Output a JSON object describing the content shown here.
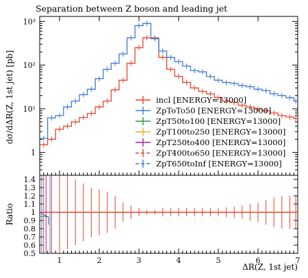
{
  "chart_data": {
    "type": "line",
    "title": "Separation between Z boson and leading jet",
    "xlabel": "ΔR(Z, 1st jet)",
    "ylabel": "dσ/dΔR(Z, 1st jet) [pb]",
    "ratio_ylabel": "Ratio",
    "xlim": [
      0.5,
      7.0
    ],
    "ylim": [
      0.3,
      1300
    ],
    "ylog": true,
    "ratio_ylim": [
      0.5,
      1.45
    ],
    "x_ticks": [
      "1",
      "2",
      "3",
      "4",
      "5",
      "6",
      "7"
    ],
    "y_ticks": [
      "1",
      "10¹",
      "10²",
      "10³"
    ],
    "ratio_ticks": [
      "0.5",
      "0.6",
      "0.7",
      "0.8",
      "0.9",
      "1",
      "1.1",
      "1.2",
      "1.3",
      "1.4"
    ],
    "bin_edges": [
      0.5,
      0.7,
      0.9,
      1.1,
      1.3,
      1.5,
      1.7,
      1.9,
      2.1,
      2.3,
      2.5,
      2.7,
      2.9,
      3.1,
      3.3,
      3.5,
      3.7,
      3.9,
      4.1,
      4.3,
      4.5,
      4.7,
      4.9,
      5.1,
      5.3,
      5.5,
      5.7,
      5.9,
      6.1,
      6.3,
      6.5,
      6.7,
      6.9,
      7.0
    ],
    "legend_position": "bottom-right",
    "series": [
      {
        "name": "incl [ENERGY=13000]",
        "color": "#e8432a",
        "dash": "solid",
        "values": [
          1.5,
          2.0,
          3.4,
          4.0,
          5.0,
          6.3,
          7.8,
          11,
          15,
          27,
          45,
          110,
          250,
          420,
          420,
          150,
          80,
          55,
          40,
          30,
          25,
          22,
          18,
          15,
          14,
          12,
          11,
          10,
          9,
          8,
          7,
          6.5,
          6
        ]
      },
      {
        "name": "ZpTo To50 [ENERGY=13000]",
        "color": "#3c78d8",
        "dash": "solid",
        "values": [
          2.1,
          6.2,
          7.0,
          11,
          15,
          21,
          28,
          49,
          80,
          110,
          180,
          420,
          800,
          900,
          400,
          210,
          150,
          120,
          95,
          75,
          70,
          55,
          45,
          40,
          38,
          34,
          32,
          28,
          26,
          22,
          20,
          18,
          15
        ]
      },
      {
        "name": "ZpT50to100 [ENERGY=13000]",
        "color": "#2ea02e",
        "dash": "solid",
        "values": []
      },
      {
        "name": "ZpT100to250 [ENERGY=13000]",
        "color": "#f5a623",
        "dash": "solid",
        "values": []
      },
      {
        "name": "ZpT250to400 [ENERGY=13000]",
        "color": "#a020a0",
        "dash": "solid",
        "values": []
      },
      {
        "name": "ZpT400to650 [ENERGY=13000]",
        "color": "#e8432a",
        "dash": "dashed",
        "values": []
      },
      {
        "name": "ZpT650toInf [ENERGY=13000]",
        "color": "#3c78d8",
        "dash": "dashed",
        "values": []
      }
    ],
    "legend_labels": [
      "incl [ENERGY=13000]",
      "ZpToTo50 [ENERGY=13000]",
      "ZpT50to100 [ENERGY=13000]",
      "ZpT100to250 [ENERGY=13000]",
      "ZpT250to400 [ENERGY=13000]",
      "ZpT400to650 [ENERGY=13000]",
      "ZpT650toInf [ENERGY=13000]"
    ],
    "ratio_errors": [
      0.6,
      0.6,
      0.5,
      0.45,
      0.4,
      0.35,
      0.3,
      0.28,
      0.25,
      0.2,
      0.12,
      0.08,
      0.05,
      0.03,
      0.03,
      0.05,
      0.05,
      0.05,
      0.05,
      0.05,
      0.05,
      0.05,
      0.05,
      0.06,
      0.07,
      0.08,
      0.1,
      0.12,
      0.15,
      0.18,
      0.2,
      0.2,
      0.2
    ]
  }
}
